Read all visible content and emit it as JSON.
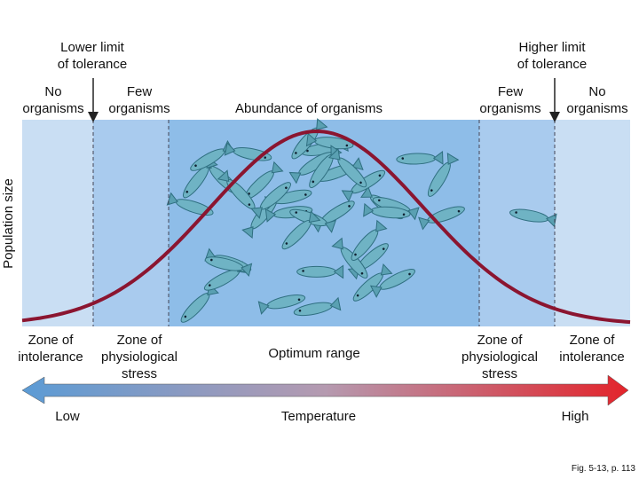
{
  "limits": {
    "lower": [
      "Lower limit",
      "of tolerance"
    ],
    "higher": [
      "Higher limit",
      "of tolerance"
    ]
  },
  "abundance_labels": [
    [
      "No",
      "organisms"
    ],
    [
      "Few",
      "organisms"
    ],
    [
      "Abundance of organisms"
    ],
    [
      "Few",
      "organisms"
    ],
    [
      "No",
      "organisms"
    ]
  ],
  "y_axis_label": "Population size",
  "zones": [
    [
      "Zone of",
      "intolerance"
    ],
    [
      "Zone of",
      "physiological",
      "stress"
    ],
    [
      "Optimum range"
    ],
    [
      "Zone of",
      "physiological",
      "stress"
    ],
    [
      "Zone of",
      "intolerance"
    ]
  ],
  "temperature_axis": {
    "low": "Low",
    "label": "Temperature",
    "high": "High"
  },
  "caption": "Fig. 5-13, p. 113"
}
